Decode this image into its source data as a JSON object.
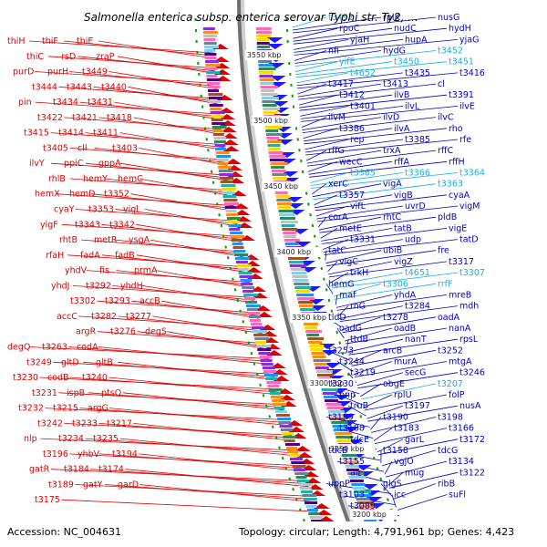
{
  "title": "Salmonella enterica subsp. enterica serovar Typhi str. Ty2, ...",
  "footer": {
    "accession": "Accession: NC_004631",
    "summary": "Topology: circular; Length: 4,791,961 bp; Genes: 4,423"
  },
  "scale_marks": [
    "3550 kbp",
    "3500 kbp",
    "3450 kbp",
    "3400 kbp",
    "3350 kbp",
    "3300 kbp",
    "3250 kbp",
    "3200 kbp"
  ],
  "left_genes": [
    "thiH",
    "thiF",
    "thiE",
    "thiC",
    "rsD",
    "zraP",
    "purD",
    "purH",
    "t3449",
    "t3444",
    "t3443",
    "t3440",
    "pin",
    "t3434",
    "t3431",
    "t3422",
    "t3421",
    "t3418",
    "t3415",
    "t3414",
    "t3411",
    "t3405",
    "cll",
    "t3403",
    "ilvY",
    "ppiC",
    "gppA",
    "rhlB",
    "hemY",
    "hemC",
    "hemX",
    "hemD",
    "t3352",
    "cyaY",
    "t3353",
    "vigl",
    "yigF",
    "t3343",
    "t3342",
    "rhtB",
    "metR",
    "ysgA",
    "rfaH",
    "fadA",
    "fadB",
    "yhdV",
    "fis",
    "prmA",
    "yhdJ",
    "t3292",
    "yhdH",
    "t3302",
    "t3293",
    "accB",
    "accC",
    "t3282",
    "t3277",
    "argR",
    "t3276",
    "degS",
    "degQ",
    "t3263",
    "codA",
    "t3249",
    "gltD",
    "gltB",
    "t3230",
    "codB",
    "t3240",
    "t3231",
    "ispB",
    "ptsO",
    "t3232",
    "t3215",
    "argG",
    "t3242",
    "t3233",
    "t3217",
    "nlp",
    "t3234",
    "t3235",
    "t3196",
    "yhbV",
    "t3194",
    "gatR",
    "t3184",
    "t3174",
    "t3189",
    "gatY",
    "garD",
    "t3175"
  ],
  "right_genes": [
    "t3492",
    "rplK",
    "nusG",
    "rpoC",
    "nudC",
    "hydH",
    "yjaH",
    "hupA",
    "yjaG",
    "nfi",
    "hydG",
    "t3452",
    "yifE",
    "t3450",
    "t3451",
    "t4652",
    "t3435",
    "t3416",
    "t3417",
    "t3413",
    "cl",
    "t3412",
    "ilvB",
    "t3391",
    "t3401",
    "ilvL",
    "ilvE",
    "ilvM",
    "ilvD",
    "ilvC",
    "t3386",
    "ilvA",
    "rho",
    "rep",
    "t3385",
    "rfe",
    "rffG",
    "trxA",
    "rffC",
    "wecC",
    "rffA",
    "rffH",
    "t3365",
    "t3366",
    "t3364",
    "xerC",
    "vigA",
    "t3363",
    "t3357",
    "vigB",
    "cyaA",
    "vifL",
    "uvrD",
    "vigM",
    "corA",
    "rhtC",
    "pldB",
    "metE",
    "tatB",
    "vigE",
    "t3331",
    "udp",
    "tatD",
    "tatC",
    "ubiB",
    "fre",
    "vigC",
    "vigZ",
    "t3317",
    "trkH",
    "t4651",
    "t3307",
    "hemG",
    "t3306",
    "rrfF",
    "maf",
    "yhdA",
    "mreB",
    "rnG",
    "t3284",
    "mdh",
    "tldD",
    "t3278",
    "oadA",
    "oadG",
    "oadB",
    "nanA",
    "ttdB",
    "nanT",
    "rpsL",
    "t3253",
    "arcB",
    "t3252",
    "t3244",
    "murA",
    "mtgA",
    "t3219",
    "secG",
    "t3246",
    "t3230",
    "obgE",
    "t3207",
    "pnp",
    "rplU",
    "folP",
    "truB",
    "t3197",
    "nusA",
    "t3199",
    "t3190",
    "t3198",
    "t3188",
    "t3183",
    "t3166",
    "tdcE",
    "garL",
    "t3172",
    "tdcB",
    "t3158",
    "tdcG",
    "t3155",
    "vgjO",
    "t3134",
    "air",
    "mug",
    "t3122",
    "uppP",
    "glgS",
    "ribB",
    "t3103",
    "icc",
    "suFl",
    "t3089"
  ]
}
